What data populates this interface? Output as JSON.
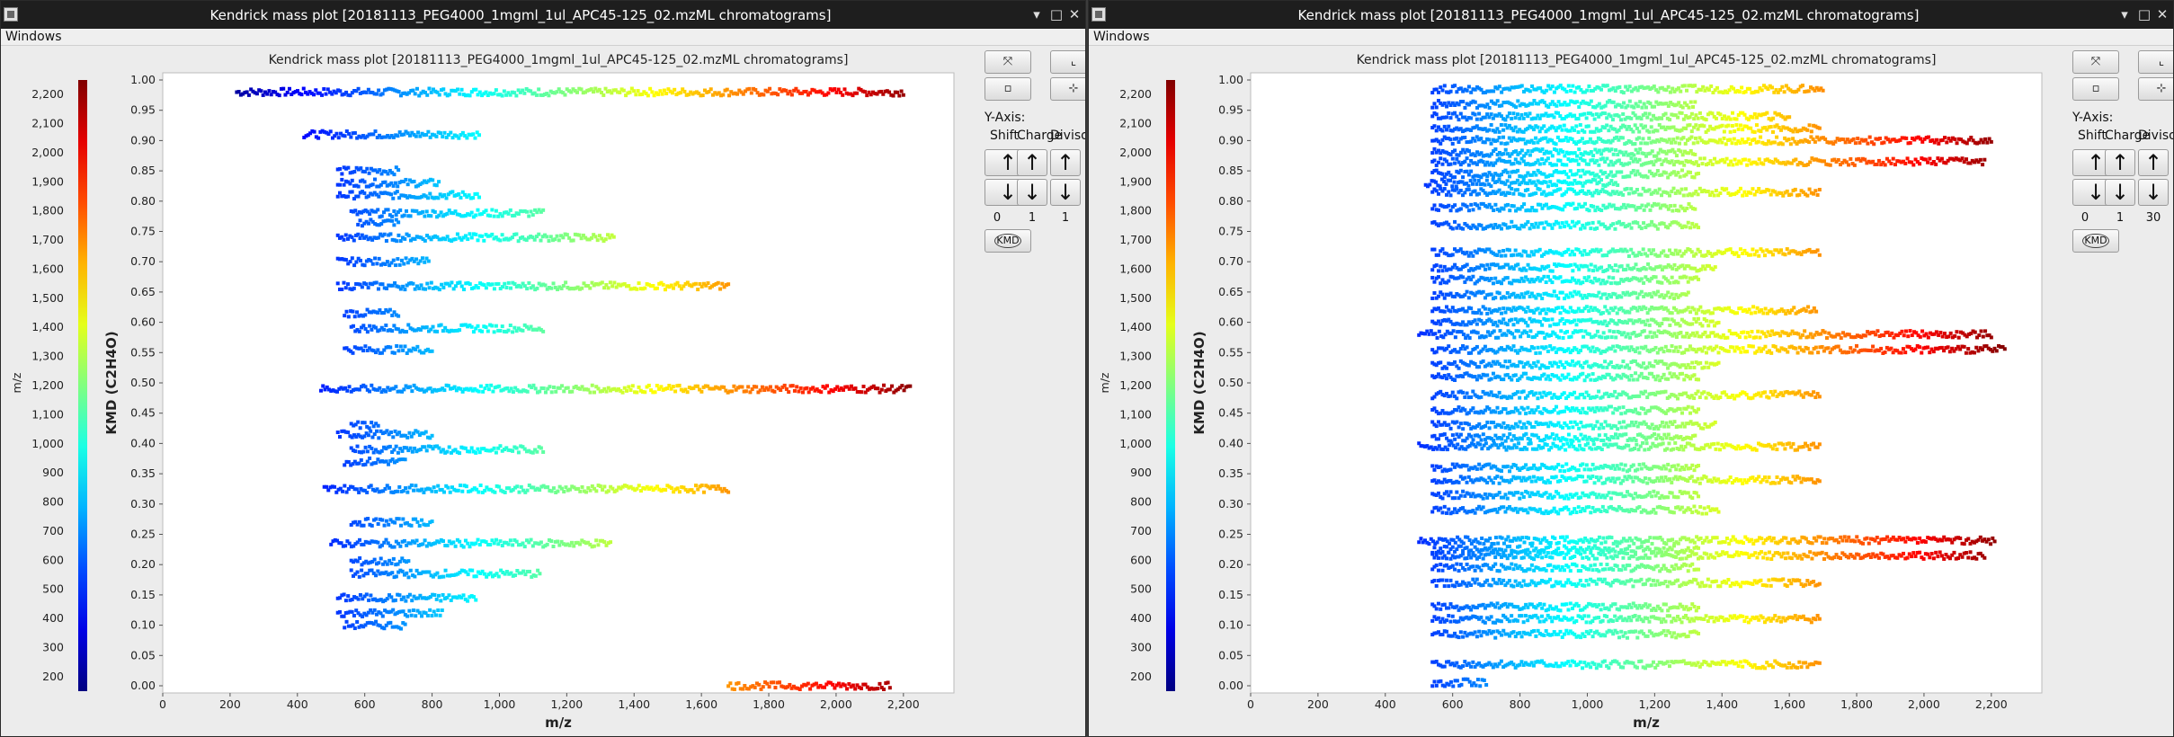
{
  "windows": [
    {
      "title": "Kendrick mass plot [20181113_PEG4000_1mgml_1ul_APC45-125_02.mzML chromatograms]",
      "menu": "Windows",
      "controls": {
        "minimize": "▾",
        "maximize": "□",
        "close": "✕"
      },
      "plot_title": "Kendrick mass plot [20181113_PEG4000_1mgml_1ul_APC45-125_02.mzML chromatograms]",
      "yaxis_label": "Y-Axis:",
      "shift_label": "Shift",
      "charge_label": "Charge",
      "divisor_label": "Divisor",
      "shift_value": "0",
      "charge_value": "1",
      "divisor_value": "1",
      "kmd_button": "KMD",
      "up_arrow": "↑",
      "down_arrow": "↓",
      "zoom_icon": "zoom-fit-icon",
      "blank_icon": "toggle-icon",
      "axes_icon": "axes-settings-icon",
      "scale_icon": "scale-icon"
    },
    {
      "title": "Kendrick mass plot [20181113_PEG4000_1mgml_1ul_APC45-125_02.mzML chromatograms]",
      "menu": "Windows",
      "controls": {
        "minimize": "▾",
        "maximize": "□",
        "close": "✕"
      },
      "plot_title": "Kendrick mass plot [20181113_PEG4000_1mgml_1ul_APC45-125_02.mzML chromatograms]",
      "yaxis_label": "Y-Axis:",
      "shift_label": "Shift",
      "charge_label": "Charge",
      "divisor_label": "Divisor",
      "shift_value": "0",
      "charge_value": "1",
      "divisor_value": "30",
      "kmd_button": "KMD",
      "up_arrow": "↑",
      "down_arrow": "↓",
      "zoom_icon": "zoom-fit-icon",
      "blank_icon": "toggle-icon",
      "axes_icon": "axes-settings-icon",
      "scale_icon": "scale-icon"
    }
  ],
  "chart_data": [
    {
      "type": "scatter",
      "title": "Kendrick mass plot [20181113_PEG4000_1mgml_1ul_APC45-125_02.mzML chromatograms]",
      "xlabel": "m/z",
      "ylabel": "KMD (C2H4O)",
      "xlim": [
        0,
        2350
      ],
      "ylim": [
        0,
        1.0
      ],
      "xticks": [
        "0",
        "200",
        "400",
        "600",
        "800",
        "1,000",
        "1,200",
        "1,400",
        "1,600",
        "1,800",
        "2,000",
        "2,200"
      ],
      "yticks": [
        "0.00",
        "0.05",
        "0.10",
        "0.15",
        "0.20",
        "0.25",
        "0.30",
        "0.35",
        "0.40",
        "0.45",
        "0.50",
        "0.55",
        "0.60",
        "0.65",
        "0.70",
        "0.75",
        "0.80",
        "0.85",
        "0.90",
        "0.95",
        "1.00"
      ],
      "colorbar": {
        "label": "m/z",
        "ticks": [
          "200",
          "300",
          "400",
          "500",
          "600",
          "700",
          "800",
          "900",
          "1,000",
          "1,100",
          "1,200",
          "1,300",
          "1,400",
          "1,500",
          "1,600",
          "1,700",
          "1,800",
          "1,900",
          "2,000",
          "2,100",
          "2,200"
        ],
        "range": [
          150,
          2250
        ]
      },
      "grid": false,
      "bands": [
        {
          "x": [
            220,
            2200
          ],
          "y": 0.98
        },
        {
          "x": [
            420,
            940
          ],
          "y": 0.91
        },
        {
          "x": [
            520,
            700
          ],
          "y": 0.85
        },
        {
          "x": [
            520,
            820
          ],
          "y": 0.83
        },
        {
          "x": [
            520,
            940
          ],
          "y": 0.81
        },
        {
          "x": [
            560,
            1130
          ],
          "y": 0.78
        },
        {
          "x": [
            580,
            700
          ],
          "y": 0.765
        },
        {
          "x": [
            520,
            1340
          ],
          "y": 0.74
        },
        {
          "x": [
            520,
            790
          ],
          "y": 0.7
        },
        {
          "x": [
            520,
            1680
          ],
          "y": 0.66
        },
        {
          "x": [
            540,
            700
          ],
          "y": 0.615
        },
        {
          "x": [
            560,
            1130
          ],
          "y": 0.59
        },
        {
          "x": [
            540,
            800
          ],
          "y": 0.555
        },
        {
          "x": [
            470,
            2220
          ],
          "y": 0.49
        },
        {
          "x": [
            560,
            640
          ],
          "y": 0.43
        },
        {
          "x": [
            520,
            800
          ],
          "y": 0.415
        },
        {
          "x": [
            560,
            1130
          ],
          "y": 0.39
        },
        {
          "x": [
            540,
            720
          ],
          "y": 0.37
        },
        {
          "x": [
            480,
            1680
          ],
          "y": 0.325
        },
        {
          "x": [
            560,
            800
          ],
          "y": 0.27
        },
        {
          "x": [
            500,
            1330
          ],
          "y": 0.235
        },
        {
          "x": [
            560,
            730
          ],
          "y": 0.205
        },
        {
          "x": [
            560,
            1120
          ],
          "y": 0.185
        },
        {
          "x": [
            520,
            930
          ],
          "y": 0.145
        },
        {
          "x": [
            520,
            830
          ],
          "y": 0.12
        },
        {
          "x": [
            540,
            720
          ],
          "y": 0.1
        },
        {
          "x": [
            1680,
            2160
          ],
          "y": 0.0
        }
      ]
    },
    {
      "type": "scatter",
      "title": "Kendrick mass plot [20181113_PEG4000_1mgml_1ul_APC45-125_02.mzML chromatograms]",
      "xlabel": "m/z",
      "ylabel": "KMD (C2H4O)",
      "xlim": [
        0,
        2350
      ],
      "ylim": [
        0,
        1.0
      ],
      "xticks": [
        "0",
        "200",
        "400",
        "600",
        "800",
        "1,000",
        "1,200",
        "1,400",
        "1,600",
        "1,800",
        "2,000",
        "2,200"
      ],
      "yticks": [
        "0.00",
        "0.05",
        "0.10",
        "0.15",
        "0.20",
        "0.25",
        "0.30",
        "0.35",
        "0.40",
        "0.45",
        "0.50",
        "0.55",
        "0.60",
        "0.65",
        "0.70",
        "0.75",
        "0.80",
        "0.85",
        "0.90",
        "0.95",
        "1.00"
      ],
      "colorbar": {
        "label": "m/z",
        "ticks": [
          "200",
          "300",
          "400",
          "500",
          "600",
          "700",
          "800",
          "900",
          "1,000",
          "1,100",
          "1,200",
          "1,300",
          "1,400",
          "1,500",
          "1,600",
          "1,700",
          "1,800",
          "1,900",
          "2,000",
          "2,100",
          "2,200"
        ],
        "range": [
          150,
          2250
        ]
      },
      "grid": false,
      "bands": [
        {
          "x": [
            540,
            1700
          ],
          "y": 0.985
        },
        {
          "x": [
            540,
            1320
          ],
          "y": 0.96
        },
        {
          "x": [
            540,
            1600
          ],
          "y": 0.94
        },
        {
          "x": [
            540,
            1690
          ],
          "y": 0.92
        },
        {
          "x": [
            540,
            2200
          ],
          "y": 0.9
        },
        {
          "x": [
            540,
            1320
          ],
          "y": 0.88
        },
        {
          "x": [
            540,
            2180
          ],
          "y": 0.865
        },
        {
          "x": [
            540,
            1330
          ],
          "y": 0.845
        },
        {
          "x": [
            520,
            1090
          ],
          "y": 0.83
        },
        {
          "x": [
            540,
            1690
          ],
          "y": 0.815
        },
        {
          "x": [
            540,
            1320
          ],
          "y": 0.79
        },
        {
          "x": [
            540,
            1330
          ],
          "y": 0.76
        },
        {
          "x": [
            540,
            1690
          ],
          "y": 0.715
        },
        {
          "x": [
            540,
            1380
          ],
          "y": 0.69
        },
        {
          "x": [
            540,
            1330
          ],
          "y": 0.67
        },
        {
          "x": [
            540,
            1300
          ],
          "y": 0.645
        },
        {
          "x": [
            540,
            1680
          ],
          "y": 0.62
        },
        {
          "x": [
            540,
            1390
          ],
          "y": 0.6
        },
        {
          "x": [
            500,
            2200
          ],
          "y": 0.58
        },
        {
          "x": [
            540,
            2240
          ],
          "y": 0.555
        },
        {
          "x": [
            540,
            1390
          ],
          "y": 0.53
        },
        {
          "x": [
            540,
            1330
          ],
          "y": 0.51
        },
        {
          "x": [
            540,
            1690
          ],
          "y": 0.48
        },
        {
          "x": [
            540,
            1330
          ],
          "y": 0.455
        },
        {
          "x": [
            540,
            1380
          ],
          "y": 0.43
        },
        {
          "x": [
            540,
            1320
          ],
          "y": 0.41
        },
        {
          "x": [
            500,
            1690
          ],
          "y": 0.395
        },
        {
          "x": [
            540,
            1330
          ],
          "y": 0.36
        },
        {
          "x": [
            540,
            1690
          ],
          "y": 0.34
        },
        {
          "x": [
            540,
            1330
          ],
          "y": 0.315
        },
        {
          "x": [
            540,
            1390
          ],
          "y": 0.29
        },
        {
          "x": [
            500,
            2210
          ],
          "y": 0.24
        },
        {
          "x": [
            540,
            1330
          ],
          "y": 0.225
        },
        {
          "x": [
            540,
            2180
          ],
          "y": 0.215
        },
        {
          "x": [
            540,
            1330
          ],
          "y": 0.195
        },
        {
          "x": [
            540,
            1690
          ],
          "y": 0.17
        },
        {
          "x": [
            540,
            1330
          ],
          "y": 0.13
        },
        {
          "x": [
            540,
            1690
          ],
          "y": 0.11
        },
        {
          "x": [
            540,
            1330
          ],
          "y": 0.085
        },
        {
          "x": [
            540,
            1690
          ],
          "y": 0.035
        },
        {
          "x": [
            540,
            700
          ],
          "y": 0.005
        }
      ]
    }
  ]
}
